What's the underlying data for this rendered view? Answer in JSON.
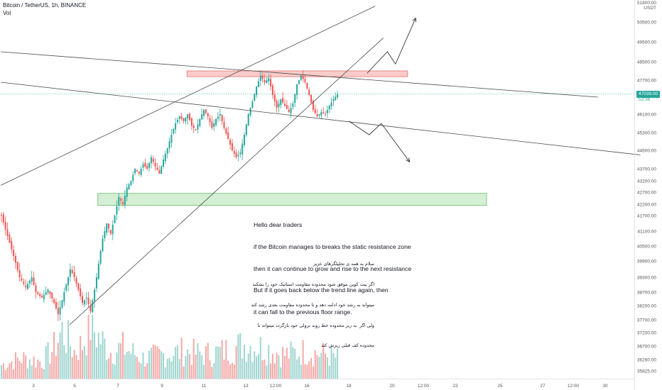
{
  "header": {
    "symbol": "Bitcoin / TetherUS, 1h, BINANCE",
    "volume_label": "Vol"
  },
  "axis": {
    "currency_line1": "51800.00",
    "currency_line2": "USDT",
    "current_price": "47039.00",
    "countdown": "53:38"
  },
  "colors": {
    "up": "#26a69a",
    "down": "#ef5350",
    "vol_up": "#9fd6d0",
    "vol_down": "#f3a9a7",
    "resistance_fill": "#f8c3c0",
    "resistance_border": "#e57373",
    "support_fill": "#cdeccd",
    "support_border": "#66bb6a",
    "trendline": "#4a4a4a"
  },
  "annotation": {
    "en": [
      "Hello dear traders",
      "if the Bitcoin manages to breaks the static resistance zone",
      "then it can continue to grow and rise to the next resistance",
      "But if it goes back below the trend line again, then",
      "it can fall to the previous floor range."
    ],
    "fa": [
      "سلام به همه ی تحلیلگرهای عزیز",
      "اگر بیت کوین موفق شود محدوده مقاومت استاتیک خود را بشکند",
      "میتواند به رشد خود ادامه دهد و تا محدوده مقاومت بعدی رشد کند",
      "ولی اگر  به زیر محدوده خط روند نزولی خود بازگردد میتواند تا",
      "محدوده کف قبلی ریزش کند"
    ]
  },
  "chart_data": {
    "type": "candlestick",
    "title": "Bitcoin / TetherUS, 1h, BINANCE",
    "y_tick_labels": [
      "50500.00",
      "49500.00",
      "48500.00",
      "47700.00",
      "46100.00",
      "45300.00",
      "44500.00",
      "43700.00",
      "43200.00",
      "42700.00",
      "42200.00",
      "41700.00",
      "41100.00",
      "40500.00",
      "39900.00",
      "39300.00",
      "38700.00",
      "38200.00",
      "37700.00",
      "37200.00",
      "36700.00",
      "36260.00",
      "35825.00"
    ],
    "x_tick_labels": [
      "3",
      "5",
      "7",
      "9",
      "11",
      "13",
      "12:00",
      "16",
      "18",
      "20",
      "12:00",
      "23",
      "25",
      "27",
      "12:00",
      "30"
    ],
    "price_path": [
      [
        0,
        41700
      ],
      [
        3,
        40900
      ],
      [
        6,
        40100
      ],
      [
        9,
        39300
      ],
      [
        12,
        38900
      ],
      [
        15,
        39300
      ],
      [
        17,
        38700
      ],
      [
        20,
        38500
      ],
      [
        23,
        38800
      ],
      [
        26,
        38300
      ],
      [
        28,
        37900
      ],
      [
        30,
        38400
      ],
      [
        32,
        39000
      ],
      [
        34,
        39600
      ],
      [
        36,
        39300
      ],
      [
        38,
        38800
      ],
      [
        40,
        38300
      ],
      [
        42,
        38500
      ],
      [
        44,
        38000
      ],
      [
        46,
        38800
      ],
      [
        48,
        39800
      ],
      [
        50,
        40800
      ],
      [
        52,
        41400
      ],
      [
        54,
        41000
      ],
      [
        56,
        41700
      ],
      [
        58,
        42500
      ],
      [
        60,
        42200
      ],
      [
        62,
        42900
      ],
      [
        64,
        43200
      ],
      [
        66,
        43700
      ],
      [
        68,
        43500
      ],
      [
        70,
        43900
      ],
      [
        72,
        43700
      ],
      [
        74,
        44200
      ],
      [
        76,
        43800
      ],
      [
        78,
        43500
      ],
      [
        80,
        44100
      ],
      [
        82,
        44600
      ],
      [
        84,
        45200
      ],
      [
        86,
        45700
      ],
      [
        88,
        46000
      ],
      [
        90,
        45800
      ],
      [
        92,
        46100
      ],
      [
        94,
        45600
      ],
      [
        96,
        45400
      ],
      [
        98,
        45900
      ],
      [
        100,
        46300
      ],
      [
        102,
        46000
      ],
      [
        104,
        45500
      ],
      [
        106,
        45900
      ],
      [
        108,
        46100
      ],
      [
        110,
        45500
      ],
      [
        112,
        45000
      ],
      [
        114,
        44500
      ],
      [
        116,
        44200
      ],
      [
        118,
        44400
      ],
      [
        120,
        45200
      ],
      [
        122,
        46100
      ],
      [
        124,
        46700
      ],
      [
        126,
        47400
      ],
      [
        128,
        47900
      ],
      [
        130,
        47600
      ],
      [
        132,
        47800
      ],
      [
        134,
        47000
      ],
      [
        136,
        46400
      ],
      [
        138,
        46800
      ],
      [
        140,
        46500
      ],
      [
        142,
        46200
      ],
      [
        144,
        46600
      ],
      [
        146,
        47500
      ],
      [
        148,
        47900
      ],
      [
        150,
        47600
      ],
      [
        152,
        47000
      ],
      [
        154,
        46300
      ],
      [
        156,
        46000
      ],
      [
        158,
        46200
      ],
      [
        160,
        46100
      ],
      [
        162,
        46500
      ],
      [
        164,
        46800
      ],
      [
        166,
        47039
      ]
    ],
    "volume_path": [
      [
        0,
        4
      ],
      [
        10,
        6
      ],
      [
        20,
        5
      ],
      [
        26,
        9
      ],
      [
        30,
        14
      ],
      [
        36,
        8
      ],
      [
        40,
        10
      ],
      [
        44,
        16
      ],
      [
        48,
        12
      ],
      [
        54,
        8
      ],
      [
        60,
        9
      ],
      [
        70,
        6
      ],
      [
        80,
        7
      ],
      [
        90,
        8
      ],
      [
        100,
        7
      ],
      [
        110,
        8
      ],
      [
        120,
        10
      ],
      [
        130,
        9
      ],
      [
        140,
        7
      ],
      [
        150,
        8
      ],
      [
        160,
        7
      ],
      [
        166,
        6
      ]
    ],
    "zones": [
      {
        "name": "static-resistance",
        "price_top": 48100,
        "price_bottom": 47850,
        "bar_start": 92,
        "bar_end": 201
      },
      {
        "name": "floor-range",
        "price_top": 42650,
        "price_bottom": 42150,
        "bar_start": 48,
        "bar_end": 240
      }
    ],
    "trendlines": [
      {
        "name": "upper-channel",
        "from": [
          0,
          43000
        ],
        "to": [
          185,
          51300
        ]
      },
      {
        "name": "rising-support",
        "from": [
          34,
          37500
        ],
        "to": [
          189,
          49700
        ]
      },
      {
        "name": "descending-top",
        "from": [
          0,
          49000
        ],
        "to": [
          295,
          46900
        ]
      },
      {
        "name": "descending-bottom",
        "from": [
          0,
          47600
        ],
        "to": [
          316,
          44300
        ]
      }
    ],
    "scenarios": [
      {
        "name": "bullish-path",
        "points": [
          [
            181,
            48000
          ],
          [
            191,
            49000
          ],
          [
            195,
            48400
          ],
          [
            205,
            50700
          ]
        ]
      },
      {
        "name": "bearish-path",
        "points": [
          [
            172,
            45800
          ],
          [
            182,
            45200
          ],
          [
            188,
            45700
          ],
          [
            202,
            44000
          ]
        ]
      }
    ]
  }
}
